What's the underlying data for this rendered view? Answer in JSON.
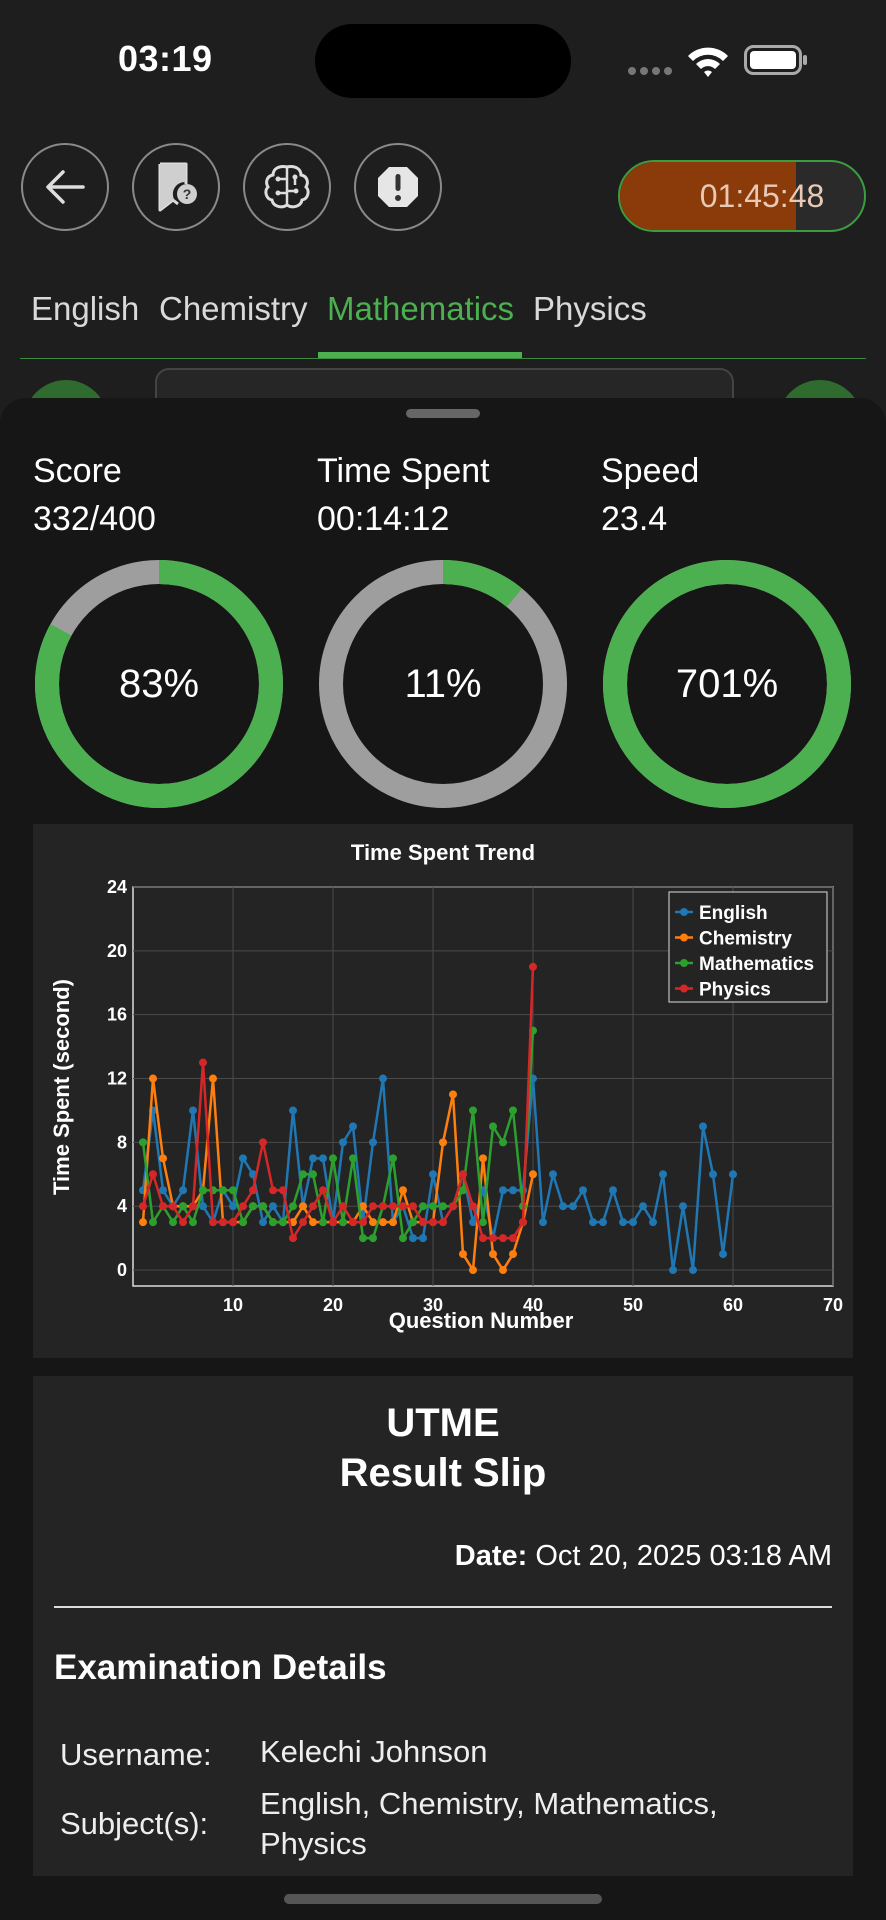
{
  "status_bar": {
    "time": "03:19"
  },
  "toolbar": {
    "timer": "01:45:48",
    "timer_fraction": 0.72
  },
  "tabs": [
    {
      "label": "English",
      "active": false
    },
    {
      "label": "Chemistry",
      "active": false
    },
    {
      "label": "Mathematics",
      "active": true
    },
    {
      "label": "Physics",
      "active": false
    }
  ],
  "stats": [
    {
      "label": "Score",
      "value": "332/400",
      "percent_text": "83%",
      "percent": 83
    },
    {
      "label": "Time Spent",
      "value": "00:14:12",
      "percent_text": "11%",
      "percent": 11
    },
    {
      "label": "Speed",
      "value": "23.4",
      "percent_text": "701%",
      "percent": 100
    }
  ],
  "colors": {
    "accent": "#4caf50",
    "ring_track": "#9e9e9e",
    "timer_fill": "#8b3a0a"
  },
  "chart_data": {
    "type": "line",
    "title": "Time Spent Trend",
    "xlabel": "Question Number",
    "ylabel": "Time Spent (second)",
    "xlim": [
      0,
      70
    ],
    "ylim": [
      -1,
      24
    ],
    "xticks": [
      10,
      20,
      30,
      40,
      50,
      60,
      70
    ],
    "yticks": [
      0,
      4,
      8,
      12,
      16,
      20,
      24
    ],
    "grid": true,
    "legend_position": "top-right",
    "series": [
      {
        "name": "English",
        "color": "#1f77b4",
        "x": [
          1,
          2,
          3,
          4,
          5,
          6,
          7,
          8,
          9,
          10,
          11,
          12,
          13,
          14,
          15,
          16,
          17,
          18,
          19,
          20,
          21,
          22,
          23,
          24,
          25,
          26,
          27,
          28,
          29,
          30,
          31,
          32,
          33,
          34,
          35,
          36,
          37,
          38,
          39,
          40,
          41,
          42,
          43,
          44,
          45,
          46,
          47,
          48,
          49,
          50,
          51,
          52,
          53,
          54,
          55,
          56,
          57,
          58,
          59,
          60
        ],
        "values": [
          5,
          10,
          5,
          4,
          5,
          10,
          4,
          3,
          5,
          4,
          7,
          6,
          3,
          4,
          3,
          10,
          4,
          7,
          7,
          3,
          8,
          9,
          3,
          8,
          12,
          3,
          4,
          2,
          2,
          6,
          3,
          4,
          6,
          3,
          5,
          2,
          5,
          5,
          5,
          12,
          3,
          6,
          4,
          4,
          5,
          3,
          3,
          5,
          3,
          3,
          4,
          3,
          6,
          0,
          4,
          0,
          9,
          6,
          1,
          6
        ]
      },
      {
        "name": "Chemistry",
        "color": "#ff7f0e",
        "x": [
          1,
          2,
          3,
          4,
          5,
          6,
          7,
          8,
          9,
          10,
          11,
          12,
          13,
          14,
          15,
          16,
          17,
          18,
          19,
          20,
          21,
          22,
          23,
          24,
          25,
          26,
          27,
          28,
          29,
          30,
          31,
          32,
          33,
          34,
          35,
          36,
          37,
          38,
          39,
          40
        ],
        "values": [
          3,
          12,
          7,
          4,
          4,
          4,
          5,
          12,
          3,
          3,
          3,
          4,
          4,
          3,
          3,
          3,
          4,
          3,
          3,
          3,
          3,
          3,
          4,
          3,
          3,
          3,
          5,
          3,
          3,
          3,
          8,
          11,
          1,
          0,
          7,
          1,
          0,
          1,
          3,
          6
        ]
      },
      {
        "name": "Mathematics",
        "color": "#2ca02c",
        "x": [
          1,
          2,
          3,
          4,
          5,
          6,
          7,
          8,
          9,
          10,
          11,
          12,
          13,
          14,
          15,
          16,
          17,
          18,
          19,
          20,
          21,
          22,
          23,
          24,
          25,
          26,
          27,
          28,
          29,
          30,
          31,
          32,
          33,
          34,
          35,
          36,
          37,
          38,
          39,
          40
        ],
        "values": [
          8,
          3,
          4,
          3,
          4,
          3,
          5,
          5,
          5,
          5,
          3,
          4,
          4,
          3,
          3,
          4,
          6,
          6,
          3,
          7,
          3,
          7,
          2,
          2,
          4,
          7,
          2,
          3,
          4,
          4,
          4,
          4,
          5,
          10,
          3,
          9,
          8,
          10,
          4,
          15
        ]
      },
      {
        "name": "Physics",
        "color": "#d62728",
        "x": [
          1,
          2,
          3,
          4,
          5,
          6,
          7,
          8,
          9,
          10,
          11,
          12,
          13,
          14,
          15,
          16,
          17,
          18,
          19,
          20,
          21,
          22,
          23,
          24,
          25,
          26,
          27,
          28,
          29,
          30,
          31,
          32,
          33,
          34,
          35,
          36,
          37,
          38,
          39,
          40
        ],
        "values": [
          4,
          6,
          4,
          4,
          3,
          4,
          13,
          3,
          3,
          3,
          4,
          5,
          8,
          5,
          5,
          2,
          3,
          4,
          5,
          3,
          4,
          3,
          3,
          4,
          4,
          4,
          4,
          4,
          3,
          3,
          3,
          4,
          6,
          4,
          2,
          2,
          2,
          2,
          3,
          19
        ]
      }
    ]
  },
  "result_slip": {
    "title_line1": "UTME",
    "title_line2": "Result Slip",
    "date_label": "Date:",
    "date_value": "Oct 20, 2025 03:18 AM",
    "section_heading": "Examination Details",
    "details": [
      {
        "label": "Username:",
        "value": "Kelechi Johnson"
      },
      {
        "label": "Subject(s):",
        "value": "English, Chemistry, Mathematics, Physics"
      }
    ]
  }
}
